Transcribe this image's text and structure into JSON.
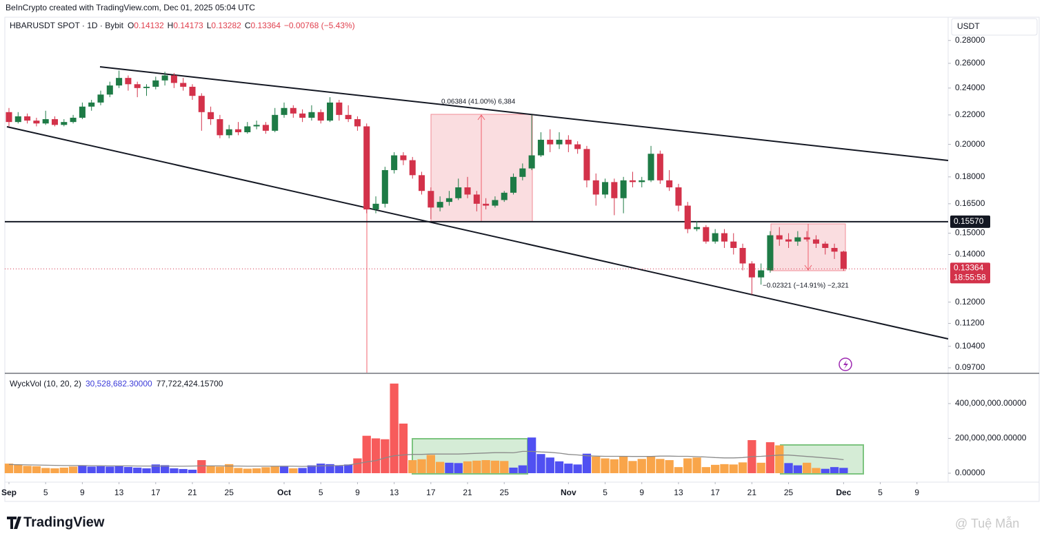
{
  "header": {
    "credit": "BeInCrypto created with TradingView.com, Dec 01, 2025 05:04 UTC",
    "symbol": "HBARUSDT SPOT · 1D · Bybit",
    "o_key": "O",
    "o": "0.14132",
    "h_key": "H",
    "h": "0.14173",
    "l_key": "L",
    "l": "0.13282",
    "c_key": "C",
    "c": "0.13364",
    "change": "−0.00768 (−5.43%)"
  },
  "footer": {
    "brand": "TradingView",
    "watermark": "@ Tuệ Mẫn"
  },
  "chart_data": {
    "type": "candlestick",
    "log_scale": true,
    "axis_unit": "USDT",
    "xlim": [
      -0.45,
      102.4
    ],
    "xticks": [
      {
        "value": 0,
        "label": "Sep"
      },
      {
        "value": 4,
        "label": "5"
      },
      {
        "value": 8,
        "label": "9"
      },
      {
        "value": 12,
        "label": "13"
      },
      {
        "value": 16,
        "label": "17"
      },
      {
        "value": 20,
        "label": "21"
      },
      {
        "value": 24,
        "label": "25"
      },
      {
        "value": 30,
        "label": "Oct"
      },
      {
        "value": 34,
        "label": "5"
      },
      {
        "value": 38,
        "label": "9"
      },
      {
        "value": 42,
        "label": "13"
      },
      {
        "value": 46,
        "label": "17"
      },
      {
        "value": 50,
        "label": "21"
      },
      {
        "value": 54,
        "label": "25"
      },
      {
        "value": 61,
        "label": "Nov"
      },
      {
        "value": 65,
        "label": "5"
      },
      {
        "value": 69,
        "label": "9"
      },
      {
        "value": 73,
        "label": "13"
      },
      {
        "value": 77,
        "label": "17"
      },
      {
        "value": 81,
        "label": "21"
      },
      {
        "value": 85,
        "label": "25"
      },
      {
        "value": 91,
        "label": "Dec"
      },
      {
        "value": 95,
        "label": "5"
      },
      {
        "value": 99,
        "label": "9"
      }
    ],
    "ylim": [
      0.0955,
      0.2855
    ],
    "yticks": [
      {
        "value": 0.28,
        "label": "0.28000"
      },
      {
        "value": 0.26,
        "label": "0.26000"
      },
      {
        "value": 0.24,
        "label": "0.24000"
      },
      {
        "value": 0.22,
        "label": "0.22000"
      },
      {
        "value": 0.2,
        "label": "0.20000"
      },
      {
        "value": 0.18,
        "label": "0.18000"
      },
      {
        "value": 0.165,
        "label": "0.16500"
      },
      {
        "value": 0.15,
        "label": "0.15000"
      },
      {
        "value": 0.14,
        "label": "0.14000"
      },
      {
        "value": 0.12,
        "label": "0.12000"
      },
      {
        "value": 0.112,
        "label": "0.11200"
      },
      {
        "value": 0.104,
        "label": "0.10400"
      },
      {
        "value": 0.097,
        "label": "0.09700"
      }
    ],
    "up_color": "#1e7b46",
    "down_color": "#d3324a",
    "ohlc": [
      [
        0.222,
        0.225,
        0.212,
        0.215
      ],
      [
        0.215,
        0.222,
        0.214,
        0.219
      ],
      [
        0.219,
        0.221,
        0.214,
        0.216
      ],
      [
        0.216,
        0.218,
        0.212,
        0.214
      ],
      [
        0.214,
        0.223,
        0.213,
        0.217
      ],
      [
        0.217,
        0.219,
        0.212,
        0.213
      ],
      [
        0.213,
        0.217,
        0.212,
        0.215
      ],
      [
        0.215,
        0.22,
        0.214,
        0.218
      ],
      [
        0.218,
        0.229,
        0.217,
        0.226
      ],
      [
        0.226,
        0.231,
        0.223,
        0.229
      ],
      [
        0.229,
        0.238,
        0.227,
        0.235
      ],
      [
        0.235,
        0.245,
        0.233,
        0.242
      ],
      [
        0.242,
        0.254,
        0.24,
        0.248
      ],
      [
        0.248,
        0.25,
        0.238,
        0.243
      ],
      [
        0.243,
        0.245,
        0.233,
        0.24
      ],
      [
        0.24,
        0.243,
        0.234,
        0.241
      ],
      [
        0.241,
        0.249,
        0.239,
        0.246
      ],
      [
        0.246,
        0.253,
        0.242,
        0.25
      ],
      [
        0.25,
        0.252,
        0.24,
        0.244
      ],
      [
        0.244,
        0.248,
        0.238,
        0.241
      ],
      [
        0.241,
        0.243,
        0.231,
        0.234
      ],
      [
        0.234,
        0.236,
        0.209,
        0.222
      ],
      [
        0.222,
        0.226,
        0.213,
        0.217
      ],
      [
        0.217,
        0.22,
        0.204,
        0.206
      ],
      [
        0.206,
        0.213,
        0.204,
        0.21
      ],
      [
        0.21,
        0.215,
        0.206,
        0.208
      ],
      [
        0.208,
        0.215,
        0.207,
        0.212
      ],
      [
        0.212,
        0.216,
        0.21,
        0.213
      ],
      [
        0.213,
        0.215,
        0.207,
        0.209
      ],
      [
        0.209,
        0.225,
        0.208,
        0.22
      ],
      [
        0.22,
        0.229,
        0.218,
        0.225
      ],
      [
        0.225,
        0.227,
        0.218,
        0.221
      ],
      [
        0.221,
        0.224,
        0.215,
        0.218
      ],
      [
        0.218,
        0.227,
        0.216,
        0.222
      ],
      [
        0.222,
        0.224,
        0.214,
        0.216
      ],
      [
        0.216,
        0.233,
        0.215,
        0.229
      ],
      [
        0.229,
        0.231,
        0.216,
        0.22
      ],
      [
        0.22,
        0.227,
        0.215,
        0.217
      ],
      [
        0.217,
        0.219,
        0.209,
        0.212
      ],
      [
        0.212,
        0.214,
        0.16,
        0.162
      ],
      [
        0.162,
        0.169,
        0.16,
        0.165
      ],
      [
        0.165,
        0.186,
        0.163,
        0.184
      ],
      [
        0.184,
        0.195,
        0.182,
        0.193
      ],
      [
        0.193,
        0.195,
        0.187,
        0.19
      ],
      [
        0.19,
        0.192,
        0.179,
        0.181
      ],
      [
        0.181,
        0.183,
        0.17,
        0.172
      ],
      [
        0.172,
        0.174,
        0.157,
        0.163
      ],
      [
        0.163,
        0.169,
        0.161,
        0.166
      ],
      [
        0.166,
        0.172,
        0.164,
        0.168
      ],
      [
        0.168,
        0.179,
        0.167,
        0.174
      ],
      [
        0.174,
        0.18,
        0.168,
        0.17
      ],
      [
        0.17,
        0.172,
        0.161,
        0.165
      ],
      [
        0.165,
        0.168,
        0.162,
        0.164
      ],
      [
        0.164,
        0.169,
        0.163,
        0.167
      ],
      [
        0.167,
        0.172,
        0.166,
        0.171
      ],
      [
        0.171,
        0.182,
        0.17,
        0.18
      ],
      [
        0.18,
        0.188,
        0.178,
        0.185
      ],
      [
        0.185,
        0.22,
        0.184,
        0.193
      ],
      [
        0.193,
        0.208,
        0.192,
        0.203
      ],
      [
        0.203,
        0.21,
        0.195,
        0.2
      ],
      [
        0.2,
        0.208,
        0.197,
        0.203
      ],
      [
        0.203,
        0.206,
        0.195,
        0.2
      ],
      [
        0.2,
        0.202,
        0.194,
        0.197
      ],
      [
        0.197,
        0.199,
        0.174,
        0.178
      ],
      [
        0.178,
        0.182,
        0.164,
        0.17
      ],
      [
        0.17,
        0.179,
        0.168,
        0.177
      ],
      [
        0.177,
        0.179,
        0.159,
        0.168
      ],
      [
        0.168,
        0.18,
        0.16,
        0.178
      ],
      [
        0.178,
        0.183,
        0.174,
        0.177
      ],
      [
        0.177,
        0.18,
        0.174,
        0.178
      ],
      [
        0.178,
        0.199,
        0.177,
        0.194
      ],
      [
        0.194,
        0.196,
        0.176,
        0.178
      ],
      [
        0.178,
        0.184,
        0.172,
        0.174
      ],
      [
        0.174,
        0.176,
        0.161,
        0.164
      ],
      [
        0.164,
        0.166,
        0.15,
        0.152
      ],
      [
        0.152,
        0.156,
        0.151,
        0.153
      ],
      [
        0.153,
        0.154,
        0.145,
        0.146
      ],
      [
        0.146,
        0.152,
        0.145,
        0.15
      ],
      [
        0.15,
        0.152,
        0.143,
        0.146
      ],
      [
        0.146,
        0.15,
        0.14,
        0.143
      ],
      [
        0.143,
        0.145,
        0.133,
        0.136
      ],
      [
        0.136,
        0.137,
        0.123,
        0.13
      ],
      [
        0.13,
        0.136,
        0.127,
        0.133
      ],
      [
        0.133,
        0.151,
        0.132,
        0.149
      ],
      [
        0.149,
        0.153,
        0.144,
        0.147
      ],
      [
        0.147,
        0.15,
        0.143,
        0.146
      ],
      [
        0.146,
        0.151,
        0.144,
        0.148
      ],
      [
        0.148,
        0.151,
        0.146,
        0.147
      ],
      [
        0.147,
        0.149,
        0.143,
        0.145
      ],
      [
        0.145,
        0.146,
        0.14,
        0.143
      ],
      [
        0.143,
        0.145,
        0.138,
        0.1413
      ],
      [
        0.14132,
        0.14173,
        0.13282,
        0.13364
      ]
    ],
    "hline": {
      "value": 0.1557,
      "label": "0.15570"
    },
    "countdown": "18:55:58",
    "annotations": [
      "0.06384 (41.00%) 6,384",
      "−0.02321 (−14.91%) −2,321"
    ],
    "volume": {
      "type": "bar",
      "name": "WyckVol (10, 20, 2)",
      "value_label": "30,528,682.30000",
      "ma_label": "77,722,424.15700",
      "ylim": [
        -51500000,
        562000000
      ],
      "yticks": [
        {
          "value": 0,
          "label": "0.00000"
        },
        {
          "value": 200000000,
          "label": "200,000,000.00000"
        },
        {
          "value": 400000000,
          "label": "400,000,000.00000"
        }
      ],
      "values": [
        55000000,
        48000000,
        42000000,
        40000000,
        30000000,
        28000000,
        32000000,
        38000000,
        45000000,
        38000000,
        40000000,
        38000000,
        40000000,
        36000000,
        32000000,
        28000000,
        50000000,
        46000000,
        28000000,
        24000000,
        20000000,
        75000000,
        42000000,
        38000000,
        52000000,
        30000000,
        26000000,
        28000000,
        34000000,
        40000000,
        42000000,
        28000000,
        30000000,
        45000000,
        55000000,
        52000000,
        42000000,
        50000000,
        85000000,
        215000000,
        200000000,
        195000000,
        515000000,
        285000000,
        75000000,
        80000000,
        105000000,
        65000000,
        60000000,
        58000000,
        68000000,
        72000000,
        75000000,
        72000000,
        70000000,
        32000000,
        45000000,
        205000000,
        110000000,
        90000000,
        68000000,
        55000000,
        50000000,
        112000000,
        95000000,
        85000000,
        80000000,
        95000000,
        70000000,
        82000000,
        95000000,
        82000000,
        75000000,
        35000000,
        85000000,
        90000000,
        35000000,
        48000000,
        52000000,
        50000000,
        62000000,
        190000000,
        60000000,
        178000000,
        160000000,
        58000000,
        45000000,
        60000000,
        30000000,
        25000000,
        35000000,
        30528682.3
      ],
      "colors": [
        "#f9a54a",
        "#f9a54a",
        "#f9a54a",
        "#f9a54a",
        "#f9a54a",
        "#f9a54a",
        "#f9a54a",
        "#f9a54a",
        "#5050f2",
        "#5050f2",
        "#5050f2",
        "#5050f2",
        "#5050f2",
        "#5050f2",
        "#5050f2",
        "#5050f2",
        "#5050f2",
        "#5050f2",
        "#5050f2",
        "#5050f2",
        "#5050f2",
        "#f75b5b",
        "#f9a54a",
        "#f9a54a",
        "#f9a54a",
        "#f9a54a",
        "#f9a54a",
        "#f9a54a",
        "#f9a54a",
        "#f9a54a",
        "#5050f2",
        "#f9a54a",
        "#5050f2",
        "#5050f2",
        "#5050f2",
        "#5050f2",
        "#5050f2",
        "#5050f2",
        "#f75b5b",
        "#f75b5b",
        "#f75b5b",
        "#f75b5b",
        "#f75b5b",
        "#f75b5b",
        "#f9a54a",
        "#f9a54a",
        "#f9a54a",
        "#f9a54a",
        "#5050f2",
        "#5050f2",
        "#f9a54a",
        "#f9a54a",
        "#f9a54a",
        "#f9a54a",
        "#f9a54a",
        "#5050f2",
        "#5050f2",
        "#5050f2",
        "#5050f2",
        "#5050f2",
        "#5050f2",
        "#5050f2",
        "#5050f2",
        "#5050f2",
        "#f9a54a",
        "#f9a54a",
        "#f9a54a",
        "#f9a54a",
        "#f9a54a",
        "#f9a54a",
        "#f9a54a",
        "#f9a54a",
        "#f9a54a",
        "#f9a54a",
        "#f9a54a",
        "#f9a54a",
        "#f9a54a",
        "#f9a54a",
        "#f9a54a",
        "#f9a54a",
        "#f9a54a",
        "#f75b5b",
        "#f9a54a",
        "#f75b5b",
        "#f9a54a",
        "#5050f2",
        "#5050f2",
        "#f9a54a",
        "#f9a54a",
        "#5050f2",
        "#5050f2",
        "#5050f2"
      ],
      "ma": {
        "color": "#8a8a8a",
        "values": [
          50000000,
          49000000,
          48000000,
          47000000,
          46000000,
          45000000,
          44000000,
          44000000,
          44000000,
          43000000,
          43000000,
          42000000,
          42000000,
          42000000,
          41000000,
          41000000,
          41000000,
          41000000,
          40000000,
          40000000,
          41000000,
          42000000,
          42000000,
          42000000,
          41000000,
          41000000,
          40000000,
          40000000,
          40000000,
          40000000,
          40000000,
          40000000,
          39000000,
          40000000,
          42000000,
          43000000,
          44000000,
          47000000,
          55000000,
          65000000,
          72000000,
          88000000,
          100000000,
          105000000,
          108000000,
          108000000,
          110000000,
          110000000,
          110000000,
          110000000,
          112000000,
          114000000,
          116000000,
          118000000,
          118000000,
          117000000,
          125000000,
          125000000,
          122000000,
          120000000,
          115000000,
          108000000,
          105000000,
          100000000,
          98000000,
          97000000,
          97000000,
          97000000,
          96000000,
          96000000,
          96000000,
          98000000,
          98000000,
          97000000,
          97000000,
          95000000,
          93000000,
          90000000,
          88000000,
          88000000,
          90000000,
          95000000,
          97000000,
          100000000,
          104000000,
          104000000,
          100000000,
          96000000,
          92000000,
          88000000,
          84000000,
          77722424.157
        ]
      }
    }
  }
}
